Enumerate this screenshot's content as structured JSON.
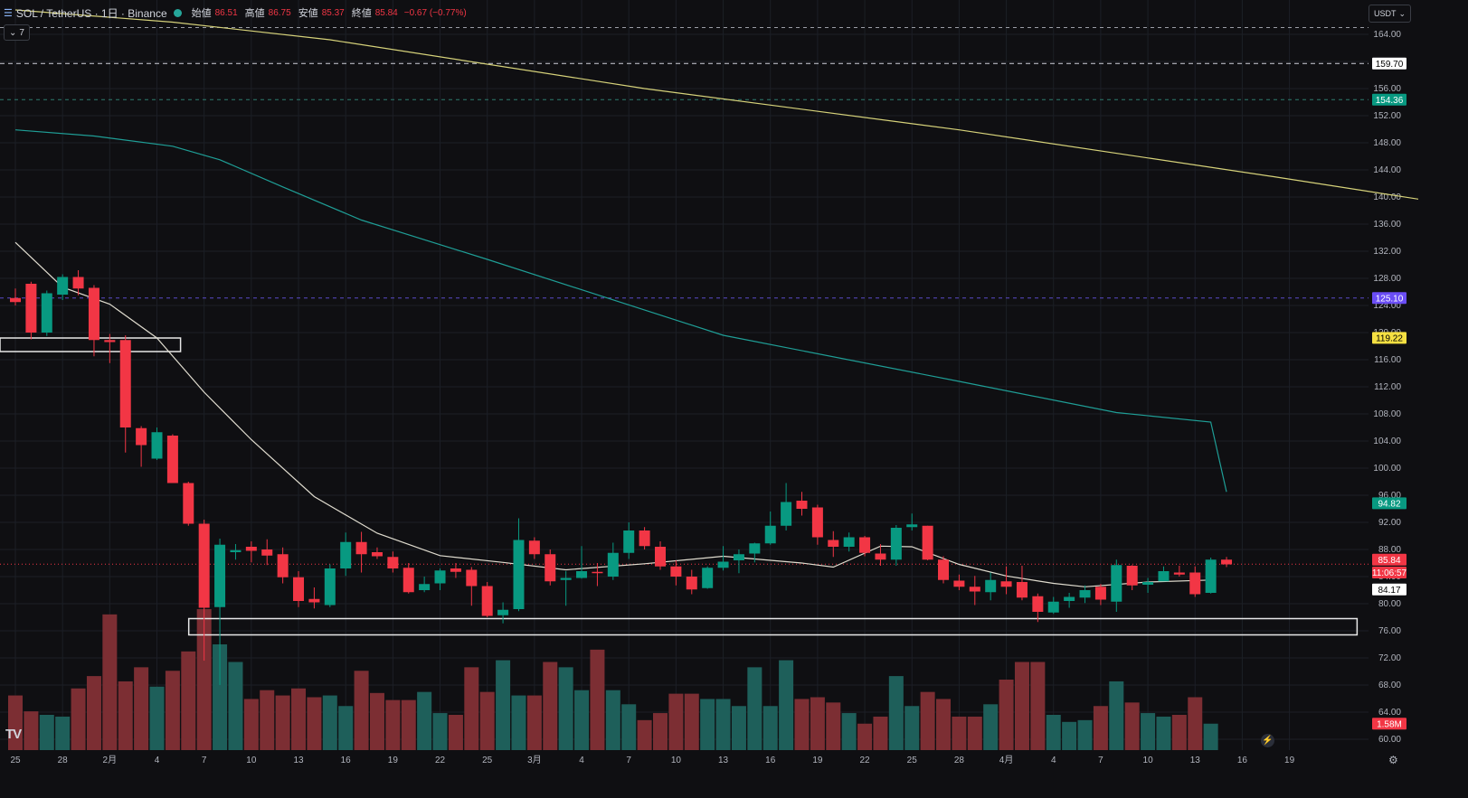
{
  "header": {
    "symbol": "SOL / TetherUS · 1日 · Binance",
    "open_label": "始値",
    "open_value": "86.51",
    "high_label": "高値",
    "high_value": "86.75",
    "low_label": "安値",
    "low_value": "85.37",
    "close_label": "終値",
    "close_value": "85.84",
    "change": "−0.67 (−0.77%)"
  },
  "indicator_toggle": "7",
  "currency_button": "USDT",
  "logo_text": "TV",
  "colors": {
    "up": "#089981",
    "down": "#f23645",
    "ma_long": "#d6d27a",
    "ma_mid": "#1f9e96",
    "ma_short": "#e0dccf",
    "purple": "#6a4df5"
  },
  "icons": [
    "chevron-down-icon",
    "eye-icon",
    "tv-logo-icon",
    "bolt-icon",
    "settings-icon"
  ],
  "chart_data": {
    "type": "candlestick",
    "y_ticks": [
      "164.00",
      "160.00",
      "156.00",
      "152.00",
      "148.00",
      "144.00",
      "140.00",
      "136.00",
      "132.00",
      "128.00",
      "124.00",
      "120.00",
      "116.00",
      "112.00",
      "108.00",
      "104.00",
      "100.00",
      "96.00",
      "92.00",
      "88.00",
      "84.00",
      "80.00",
      "76.00",
      "72.00",
      "68.00",
      "64.00",
      "60.00"
    ],
    "x_ticks": [
      "25",
      "28",
      "2月",
      "4",
      "7",
      "10",
      "13",
      "16",
      "19",
      "22",
      "25",
      "3月",
      "4",
      "7",
      "10",
      "13",
      "16",
      "19",
      "22",
      "25",
      "28",
      "4月",
      "4",
      "7",
      "10",
      "13",
      "16",
      "19"
    ],
    "candles": [
      [
        125.1,
        124.5,
        126.5,
        124.0
      ],
      [
        127.2,
        120.0,
        127.5,
        119.0
      ],
      [
        120.0,
        125.8,
        126.2,
        119.5
      ],
      [
        125.6,
        128.2,
        128.6,
        124.8
      ],
      [
        128.2,
        126.5,
        129.2,
        125.5
      ],
      [
        126.6,
        118.9,
        127.0,
        116.5
      ],
      [
        118.9,
        118.6,
        119.8,
        115.5
      ],
      [
        118.9,
        106.0,
        119.6,
        102.3
      ],
      [
        105.9,
        103.4,
        106.2,
        100.2
      ],
      [
        101.4,
        105.3,
        106.0,
        101.2
      ],
      [
        104.8,
        97.8,
        105.0,
        98.0
      ],
      [
        97.8,
        91.8,
        98.0,
        91.5
      ],
      [
        91.8,
        79.4,
        92.4,
        71.6
      ],
      [
        79.5,
        88.7,
        89.6,
        68.0
      ],
      [
        87.6,
        87.9,
        88.8,
        86.5
      ],
      [
        88.4,
        87.8,
        89.2,
        86.1
      ],
      [
        88.0,
        87.1,
        89.5,
        85.7
      ],
      [
        87.3,
        83.9,
        88.3,
        83.0
      ],
      [
        83.9,
        80.4,
        84.8,
        79.5
      ],
      [
        80.7,
        80.2,
        82.4,
        79.3
      ],
      [
        79.8,
        85.2,
        85.8,
        79.5
      ],
      [
        85.2,
        89.1,
        90.5,
        84.1
      ],
      [
        89.1,
        87.3,
        90.6,
        84.6
      ],
      [
        87.6,
        87.0,
        88.3,
        86.6
      ],
      [
        86.9,
        85.2,
        87.7,
        84.6
      ],
      [
        85.3,
        81.7,
        86.0,
        81.5
      ],
      [
        82.0,
        82.9,
        84.0,
        81.7
      ],
      [
        83.0,
        84.9,
        85.2,
        82.0
      ],
      [
        85.2,
        84.7,
        86.0,
        83.8
      ],
      [
        85.0,
        82.6,
        85.4,
        79.7
      ],
      [
        82.6,
        78.2,
        83.2,
        78.0
      ],
      [
        78.3,
        79.1,
        80.2,
        77.1
      ],
      [
        79.2,
        89.4,
        92.6,
        78.9
      ],
      [
        89.3,
        87.3,
        89.8,
        86.6
      ],
      [
        87.3,
        83.3,
        88.0,
        82.7
      ],
      [
        83.5,
        83.8,
        84.8,
        79.7
      ],
      [
        83.8,
        84.8,
        88.5,
        83.7
      ],
      [
        84.7,
        84.5,
        86.0,
        82.6
      ],
      [
        84.0,
        87.5,
        89.0,
        83.5
      ],
      [
        87.5,
        90.8,
        92.0,
        86.6
      ],
      [
        90.8,
        88.5,
        91.3,
        88.0
      ],
      [
        88.4,
        85.5,
        89.2,
        85.0
      ],
      [
        85.5,
        84.0,
        86.4,
        82.7
      ],
      [
        84.0,
        82.1,
        85.0,
        81.4
      ],
      [
        82.3,
        85.3,
        85.5,
        82.2
      ],
      [
        85.3,
        86.2,
        88.5,
        84.9
      ],
      [
        86.4,
        87.3,
        88.0,
        84.5
      ],
      [
        87.4,
        88.9,
        89.0,
        86.1
      ],
      [
        88.9,
        91.5,
        93.6,
        88.7
      ],
      [
        91.5,
        95.0,
        97.8,
        90.8
      ],
      [
        95.2,
        94.0,
        96.5,
        93.0
      ],
      [
        94.2,
        89.8,
        94.6,
        88.7
      ],
      [
        89.4,
        88.4,
        90.7,
        86.9
      ],
      [
        88.4,
        89.8,
        90.5,
        87.7
      ],
      [
        89.8,
        87.5,
        90.0,
        87.0
      ],
      [
        87.4,
        86.5,
        88.8,
        85.6
      ],
      [
        86.5,
        91.2,
        91.6,
        85.6
      ],
      [
        91.3,
        91.7,
        93.3,
        90.8
      ],
      [
        91.5,
        86.5,
        91.5,
        86.4
      ],
      [
        86.5,
        83.5,
        87.0,
        83.0
      ],
      [
        83.4,
        82.5,
        84.3,
        82.0
      ],
      [
        82.5,
        81.8,
        84.1,
        79.8
      ],
      [
        81.7,
        83.5,
        84.6,
        80.5
      ],
      [
        83.3,
        82.5,
        85.5,
        81.4
      ],
      [
        83.2,
        80.9,
        85.6,
        80.5
      ],
      [
        81.1,
        78.8,
        81.5,
        77.3
      ],
      [
        78.7,
        80.3,
        81.0,
        78.5
      ],
      [
        80.4,
        81.0,
        81.6,
        79.4
      ],
      [
        80.9,
        82.0,
        82.7,
        80.1
      ],
      [
        82.5,
        80.6,
        82.9,
        79.8
      ],
      [
        80.3,
        85.7,
        86.5,
        78.8
      ],
      [
        85.6,
        82.7,
        85.7,
        82.0
      ],
      [
        82.8,
        83.2,
        83.8,
        81.6
      ],
      [
        83.3,
        84.8,
        85.5,
        83.6
      ],
      [
        84.6,
        84.3,
        85.6,
        84.0
      ],
      [
        84.6,
        81.4,
        85.5,
        81.0
      ],
      [
        81.6,
        86.5,
        86.8,
        81.5
      ],
      [
        86.5,
        85.8,
        86.9,
        85.4
      ]
    ],
    "volumes": [
      1.55,
      1.1,
      1.0,
      0.95,
      1.75,
      2.1,
      3.85,
      1.95,
      2.35,
      1.8,
      2.25,
      2.8,
      4.0,
      3.0,
      2.5,
      1.45,
      1.7,
      1.55,
      1.75,
      1.5,
      1.55,
      1.25,
      2.25,
      1.62,
      1.42,
      1.42,
      1.65,
      1.05,
      1.0,
      2.35,
      1.65,
      2.55,
      1.55,
      1.55,
      2.5,
      2.35,
      1.7,
      2.85,
      1.7,
      1.3,
      0.85,
      1.05,
      1.6,
      1.6,
      1.45,
      1.45,
      1.25,
      2.35,
      1.25,
      2.55,
      1.45,
      1.5,
      1.35,
      1.05,
      0.75,
      0.95,
      2.1,
      1.25,
      1.65,
      1.45,
      0.95,
      0.95,
      1.3,
      2.0,
      2.5,
      2.5,
      1.0,
      0.8,
      0.85,
      1.25,
      1.95,
      1.35,
      1.05,
      0.95,
      1.0,
      1.5,
      0.75
    ],
    "ma_long": [
      [
        0,
        167.6
      ],
      [
        10,
        165.8
      ],
      [
        20,
        163.2
      ],
      [
        40,
        156.0
      ],
      [
        60,
        149.9
      ],
      [
        80,
        143.0
      ],
      [
        100,
        135.8
      ],
      [
        120,
        130.6
      ],
      [
        140,
        125.0
      ],
      [
        160,
        120.3
      ],
      [
        158,
        119.6
      ]
    ],
    "ma_mid": [
      [
        0,
        149.9
      ],
      [
        5,
        149.0
      ],
      [
        10,
        147.5
      ],
      [
        13,
        145.5
      ],
      [
        17,
        141.5
      ],
      [
        22,
        136.6
      ],
      [
        30,
        130.8
      ],
      [
        45,
        119.6
      ],
      [
        60,
        112.8
      ],
      [
        70,
        108.2
      ],
      [
        76,
        106.8
      ],
      [
        77,
        96.5
      ]
    ],
    "ma_short": [
      [
        0,
        133.3
      ],
      [
        3,
        126.7
      ],
      [
        6,
        124.2
      ],
      [
        9,
        119.2
      ],
      [
        12,
        111.2
      ],
      [
        15,
        104.2
      ],
      [
        19,
        95.8
      ],
      [
        23,
        90.4
      ],
      [
        27,
        87.1
      ],
      [
        31,
        86.1
      ],
      [
        35,
        85.0
      ],
      [
        40,
        85.9
      ],
      [
        45,
        87.0
      ],
      [
        50,
        86.0
      ],
      [
        52,
        85.4
      ],
      [
        55,
        88.5
      ],
      [
        57,
        88.4
      ],
      [
        60,
        85.8
      ],
      [
        63,
        84.1
      ],
      [
        66,
        83.0
      ],
      [
        68,
        82.5
      ],
      [
        72,
        83.2
      ],
      [
        76,
        83.5
      ]
    ],
    "h_levels": [
      {
        "price": 165.0,
        "style": "dashed-white-thin"
      },
      {
        "price": 159.7,
        "style": "dashed-white"
      },
      {
        "price": 154.36,
        "style": "dashed-teal"
      },
      {
        "price": 125.1,
        "style": "dashed-purple"
      },
      {
        "price": 85.84,
        "style": "dotted-red"
      }
    ],
    "zones": [
      {
        "from_index": 0,
        "to_index": 10.5,
        "low": 117.2,
        "high": 119.2
      },
      {
        "from_index": 12,
        "to_index": 85.3,
        "low": 75.4,
        "high": 77.8
      }
    ],
    "price_labels": [
      {
        "text": "159.70",
        "price": 159.7,
        "bg": "#ffffff",
        "fg": "#000000"
      },
      {
        "text": "154.36",
        "price": 154.36,
        "bg": "#089981",
        "fg": "#ffffff"
      },
      {
        "text": "125.10",
        "price": 125.1,
        "bg": "#6a4df5",
        "fg": "#ffffff"
      },
      {
        "text": "119.22",
        "price": 119.22,
        "bg": "#f5e042",
        "fg": "#000000"
      },
      {
        "text": "94.82",
        "price": 94.82,
        "bg": "#089981",
        "fg": "#ffffff"
      },
      {
        "text": "85.84",
        "price": 86.5,
        "bg": "#f23645",
        "fg": "#ffffff"
      },
      {
        "text": "11:06:57",
        "price": 84.6,
        "bg": "#f23645",
        "fg": "#ffffff"
      },
      {
        "text": "84.17",
        "price": 82.1,
        "bg": "#ffffff",
        "fg": "#000000"
      },
      {
        "text": "1.58M",
        "price": 62.3,
        "bg": "#f23645",
        "fg": "#ffffff"
      }
    ]
  }
}
